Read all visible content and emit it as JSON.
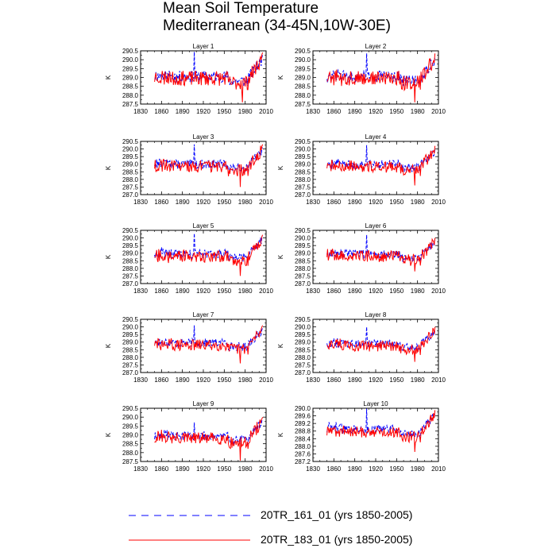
{
  "title": {
    "line1": "Mean Soil Temperature",
    "line2": "Mediterranean (34-45N,10W-30E)"
  },
  "legend": [
    {
      "label": "20TR_161_01 (yrs 1850-2005)",
      "color": "#0000ff",
      "style": "dashed"
    },
    {
      "label": "20TR_183_01 (yrs 1850-2005)",
      "color": "#ff0000",
      "style": "solid"
    }
  ],
  "chart_data": [
    {
      "type": "line",
      "title": "Layer 1",
      "ylabel": "K",
      "xlim": [
        1830,
        2010
      ],
      "ylim": [
        287.5,
        290.5
      ],
      "xticks": [
        1830,
        1860,
        1890,
        1920,
        1950,
        1980,
        2010
      ],
      "yticks": [
        287.5,
        288.0,
        288.5,
        289.0,
        289.5,
        290.0,
        290.5
      ],
      "ytick_decimals": 1,
      "series": [
        {
          "name": "20TR_161_01",
          "color": "#0000ff",
          "style": "dashed",
          "x_start": 1850,
          "x_end": 2005,
          "mean": 289.05,
          "amp": 0.32,
          "spike": 290.45,
          "spike_year": 1907,
          "end_value": 290.25,
          "seed": 11
        },
        {
          "name": "20TR_183_01",
          "color": "#ff0000",
          "style": "solid",
          "x_start": 1850,
          "x_end": 2005,
          "mean": 288.95,
          "amp": 0.42,
          "min_value": 287.6,
          "min_year": 1976,
          "end_value": 290.4,
          "seed": 23
        }
      ]
    },
    {
      "type": "line",
      "title": "Layer 2",
      "ylabel": "K",
      "xlim": [
        1830,
        2010
      ],
      "ylim": [
        287.5,
        290.5
      ],
      "xticks": [
        1830,
        1860,
        1890,
        1920,
        1950,
        1980,
        2010
      ],
      "yticks": [
        287.5,
        288.0,
        288.5,
        289.0,
        289.5,
        290.0,
        290.5
      ],
      "ytick_decimals": 1,
      "series": [
        {
          "name": "20TR_161_01",
          "color": "#0000ff",
          "style": "dashed",
          "x_start": 1850,
          "x_end": 2005,
          "mean": 289.05,
          "amp": 0.32,
          "spike": 290.35,
          "spike_year": 1907,
          "end_value": 290.2,
          "seed": 12
        },
        {
          "name": "20TR_183_01",
          "color": "#ff0000",
          "style": "solid",
          "x_start": 1850,
          "x_end": 2005,
          "mean": 288.95,
          "amp": 0.42,
          "min_value": 287.6,
          "min_year": 1976,
          "end_value": 290.35,
          "seed": 24
        }
      ]
    },
    {
      "type": "line",
      "title": "Layer 3",
      "ylabel": "K",
      "xlim": [
        1830,
        2010
      ],
      "ylim": [
        287.0,
        290.5
      ],
      "xticks": [
        1830,
        1860,
        1890,
        1920,
        1950,
        1980,
        2010
      ],
      "yticks": [
        287.0,
        287.5,
        288.0,
        288.5,
        289.0,
        289.5,
        290.0,
        290.5
      ],
      "ytick_decimals": 1,
      "series": [
        {
          "name": "20TR_161_01",
          "color": "#0000ff",
          "style": "dashed",
          "x_start": 1850,
          "x_end": 2005,
          "mean": 289.0,
          "amp": 0.3,
          "spike": 290.3,
          "spike_year": 1907,
          "end_value": 290.1,
          "seed": 13
        },
        {
          "name": "20TR_183_01",
          "color": "#ff0000",
          "style": "solid",
          "x_start": 1850,
          "x_end": 2005,
          "mean": 288.85,
          "amp": 0.4,
          "min_value": 287.5,
          "min_year": 1973,
          "end_value": 290.3,
          "seed": 25
        }
      ]
    },
    {
      "type": "line",
      "title": "Layer 4",
      "ylabel": "K",
      "xlim": [
        1830,
        2010
      ],
      "ylim": [
        287.0,
        290.5
      ],
      "xticks": [
        1830,
        1860,
        1890,
        1920,
        1950,
        1980,
        2010
      ],
      "yticks": [
        287.0,
        287.5,
        288.0,
        288.5,
        289.0,
        289.5,
        290.0,
        290.5
      ],
      "ytick_decimals": 1,
      "series": [
        {
          "name": "20TR_161_01",
          "color": "#0000ff",
          "style": "dashed",
          "x_start": 1850,
          "x_end": 2005,
          "mean": 289.0,
          "amp": 0.3,
          "spike": 290.25,
          "spike_year": 1907,
          "end_value": 290.0,
          "seed": 14
        },
        {
          "name": "20TR_183_01",
          "color": "#ff0000",
          "style": "solid",
          "x_start": 1850,
          "x_end": 2005,
          "mean": 288.85,
          "amp": 0.4,
          "min_value": 287.6,
          "min_year": 1976,
          "end_value": 290.2,
          "seed": 26
        }
      ]
    },
    {
      "type": "line",
      "title": "Layer 5",
      "ylabel": "K",
      "xlim": [
        1830,
        2010
      ],
      "ylim": [
        287.0,
        290.5
      ],
      "xticks": [
        1830,
        1860,
        1890,
        1920,
        1950,
        1980,
        2010
      ],
      "yticks": [
        287.0,
        287.5,
        288.0,
        288.5,
        289.0,
        289.5,
        290.0,
        290.5
      ],
      "ytick_decimals": 1,
      "series": [
        {
          "name": "20TR_161_01",
          "color": "#0000ff",
          "style": "dashed",
          "x_start": 1850,
          "x_end": 2005,
          "mean": 288.95,
          "amp": 0.3,
          "spike": 290.3,
          "spike_year": 1907,
          "end_value": 290.1,
          "seed": 15
        },
        {
          "name": "20TR_183_01",
          "color": "#ff0000",
          "style": "solid",
          "x_start": 1850,
          "x_end": 2005,
          "mean": 288.8,
          "amp": 0.4,
          "min_value": 287.5,
          "min_year": 1973,
          "end_value": 290.2,
          "seed": 27
        }
      ]
    },
    {
      "type": "line",
      "title": "Layer 6",
      "ylabel": "K",
      "xlim": [
        1830,
        2010
      ],
      "ylim": [
        287.0,
        290.5
      ],
      "xticks": [
        1830,
        1860,
        1890,
        1920,
        1950,
        1980,
        2010
      ],
      "yticks": [
        287.0,
        287.5,
        288.0,
        288.5,
        289.0,
        289.5,
        290.0,
        290.5
      ],
      "ytick_decimals": 1,
      "series": [
        {
          "name": "20TR_161_01",
          "color": "#0000ff",
          "style": "dashed",
          "x_start": 1850,
          "x_end": 2005,
          "mean": 288.95,
          "amp": 0.28,
          "spike": 290.2,
          "spike_year": 1907,
          "end_value": 289.9,
          "seed": 16
        },
        {
          "name": "20TR_183_01",
          "color": "#ff0000",
          "style": "solid",
          "x_start": 1850,
          "x_end": 2005,
          "mean": 288.8,
          "amp": 0.38,
          "min_value": 287.8,
          "min_year": 1976,
          "end_value": 290.0,
          "seed": 28
        }
      ]
    },
    {
      "type": "line",
      "title": "Layer 7",
      "ylabel": "K",
      "xlim": [
        1830,
        2010
      ],
      "ylim": [
        287.0,
        290.5
      ],
      "xticks": [
        1830,
        1860,
        1890,
        1920,
        1950,
        1980,
        2010
      ],
      "yticks": [
        287.0,
        287.5,
        288.0,
        288.5,
        289.0,
        289.5,
        290.0,
        290.5
      ],
      "ytick_decimals": 1,
      "series": [
        {
          "name": "20TR_161_01",
          "color": "#0000ff",
          "style": "dashed",
          "x_start": 1850,
          "x_end": 2005,
          "mean": 288.95,
          "amp": 0.28,
          "spike": 290.1,
          "spike_year": 1907,
          "end_value": 289.9,
          "seed": 17
        },
        {
          "name": "20TR_183_01",
          "color": "#ff0000",
          "style": "solid",
          "x_start": 1850,
          "x_end": 2005,
          "mean": 288.8,
          "amp": 0.38,
          "min_value": 287.6,
          "min_year": 1973,
          "end_value": 290.1,
          "seed": 29
        }
      ]
    },
    {
      "type": "line",
      "title": "Layer 8",
      "ylabel": "K",
      "xlim": [
        1830,
        2010
      ],
      "ylim": [
        287.0,
        290.5
      ],
      "xticks": [
        1830,
        1860,
        1890,
        1920,
        1950,
        1980,
        2010
      ],
      "yticks": [
        287.0,
        287.5,
        288.0,
        288.5,
        289.0,
        289.5,
        290.0,
        290.5
      ],
      "ytick_decimals": 1,
      "series": [
        {
          "name": "20TR_161_01",
          "color": "#0000ff",
          "style": "dashed",
          "x_start": 1850,
          "x_end": 2005,
          "mean": 288.9,
          "amp": 0.26,
          "spike": 290.0,
          "spike_year": 1907,
          "end_value": 289.8,
          "seed": 18
        },
        {
          "name": "20TR_183_01",
          "color": "#ff0000",
          "style": "solid",
          "x_start": 1850,
          "x_end": 2005,
          "mean": 288.75,
          "amp": 0.36,
          "min_value": 287.7,
          "min_year": 1976,
          "end_value": 290.0,
          "seed": 30
        }
      ]
    },
    {
      "type": "line",
      "title": "Layer 9",
      "ylabel": "K",
      "xlim": [
        1830,
        2010
      ],
      "ylim": [
        287.5,
        290.5
      ],
      "xticks": [
        1830,
        1860,
        1890,
        1920,
        1950,
        1980,
        2010
      ],
      "yticks": [
        287.5,
        288.0,
        288.5,
        289.0,
        289.5,
        290.0,
        290.5
      ],
      "ytick_decimals": 1,
      "series": [
        {
          "name": "20TR_161_01",
          "color": "#0000ff",
          "style": "dashed",
          "x_start": 1850,
          "x_end": 2005,
          "mean": 288.95,
          "amp": 0.25,
          "spike": 289.7,
          "spike_year": 1907,
          "end_value": 289.9,
          "seed": 19
        },
        {
          "name": "20TR_183_01",
          "color": "#ff0000",
          "style": "solid",
          "x_start": 1850,
          "x_end": 2005,
          "mean": 288.8,
          "amp": 0.35,
          "min_value": 287.55,
          "min_year": 1973,
          "end_value": 290.0,
          "seed": 31
        }
      ]
    },
    {
      "type": "line",
      "title": "Layer 10",
      "ylabel": "K",
      "xlim": [
        1830,
        2010
      ],
      "ylim": [
        287.2,
        290.0
      ],
      "xticks": [
        1830,
        1860,
        1890,
        1920,
        1950,
        1980,
        2010
      ],
      "yticks": [
        287.2,
        287.6,
        288.0,
        288.4,
        288.8,
        289.2,
        289.6,
        290.0
      ],
      "ytick_decimals": 1,
      "series": [
        {
          "name": "20TR_161_01",
          "color": "#0000ff",
          "style": "dashed",
          "x_start": 1850,
          "x_end": 2005,
          "mean": 288.9,
          "amp": 0.22,
          "spike": 290.0,
          "spike_year": 1907,
          "end_value": 289.8,
          "seed": 20
        },
        {
          "name": "20TR_183_01",
          "color": "#ff0000",
          "style": "solid",
          "x_start": 1850,
          "x_end": 2005,
          "mean": 288.75,
          "amp": 0.3,
          "min_value": 287.7,
          "min_year": 1976,
          "end_value": 289.9,
          "seed": 32
        }
      ]
    }
  ]
}
